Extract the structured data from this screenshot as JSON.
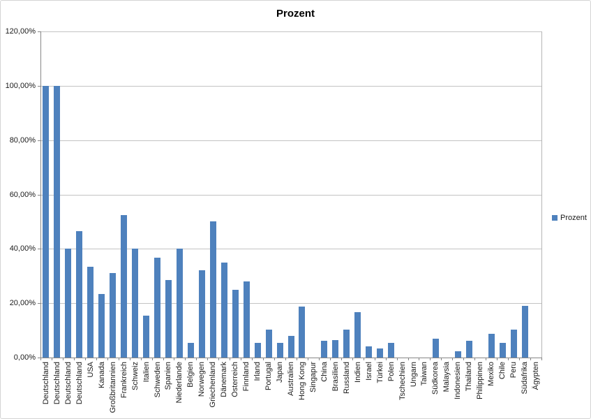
{
  "chart": {
    "title": "Prozent",
    "legend": {
      "label": "Prozent"
    },
    "colors": {
      "bar": "#4e81bd",
      "gridline": "#c3c3c3",
      "axis": "#868686",
      "plot_border": "#b5b5b5",
      "chart_border": "#d4d4d4",
      "text": "#1a1a1a"
    }
  },
  "chart_data": {
    "type": "bar",
    "title": "Prozent",
    "xlabel": "",
    "ylabel": "",
    "ylim": [
      0,
      120
    ],
    "ytick_step": 20,
    "ytick_labels": [
      "0,00%",
      "20,00%",
      "40,00%",
      "60,00%",
      "80,00%",
      "100,00%",
      "120,00%"
    ],
    "grid": true,
    "legend_position": "right",
    "legend_label": "Prozent",
    "categories": [
      "Deutschland",
      "Deutschland",
      "Deutschland",
      "Deutschland",
      "USA",
      "Kanada",
      "Großbritannien",
      "Frankreich",
      "Schweiz",
      "Italien",
      "Schweden",
      "Spanien",
      "Niederlande",
      "Belgien",
      "Norwegen",
      "Griechenland",
      "Dänemark",
      "Österreich",
      "Finnland",
      "Irland",
      "Portugal",
      "Japan",
      "Australien",
      "Hong Kong",
      "Singapur",
      "China",
      "Brasilien",
      "Russland",
      "Indien",
      "Israel",
      "Türkei",
      "Polen",
      "Tschechien",
      "Ungarn",
      "Taiwan",
      "Südkorea",
      "Malaysia",
      "Indonesien",
      "Thailand",
      "Philippinen",
      "Mexiko",
      "Chile",
      "Peru",
      "Südafrika",
      "Ägypten"
    ],
    "values": [
      100,
      100,
      40,
      46.5,
      33.3,
      23.5,
      31,
      52.5,
      40,
      15.3,
      36.8,
      28.5,
      40,
      5.3,
      32,
      50,
      35,
      25,
      28,
      5.3,
      10.2,
      5.3,
      8,
      18.8,
      0,
      6.1,
      6.4,
      10.2,
      16.8,
      4.2,
      3.4,
      5.3,
      0,
      0,
      0,
      6.9,
      0,
      2.4,
      6.2,
      0,
      8.8,
      5.3,
      10.2,
      19.1,
      0
    ]
  }
}
